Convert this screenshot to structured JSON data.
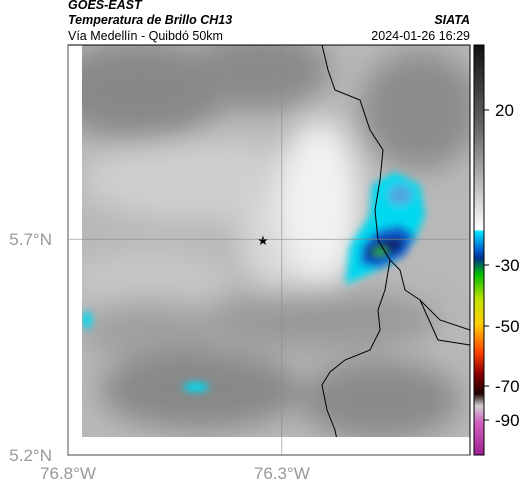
{
  "header": {
    "title": "GOES-EAST",
    "subtitle": "Temperatura de Brillo CH13",
    "region": "Vía Medellín - Quibdó 50km",
    "source": "SIATA",
    "timestamp": "2024-01-26 16:29"
  },
  "map": {
    "xlim": [
      -76.8,
      -75.86
    ],
    "ylim": [
      5.2,
      6.15
    ],
    "xticks": [
      {
        "value": -76.8,
        "label": "76.8°W"
      },
      {
        "value": -76.3,
        "label": "76.3°W"
      }
    ],
    "yticks": [
      {
        "value": 5.7,
        "label": "5.7°N"
      },
      {
        "value": 5.2,
        "label": "5.2°N"
      }
    ],
    "grid": true
  },
  "colorbar": {
    "ticks": [
      20,
      -30,
      -50,
      -70,
      -90
    ]
  }
}
